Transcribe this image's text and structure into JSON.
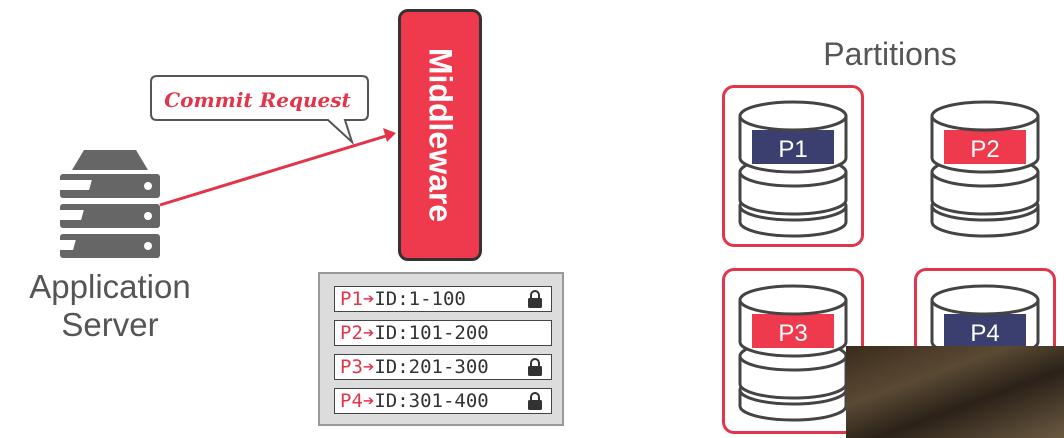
{
  "application_server": {
    "label_line1": "Application",
    "label_line2": "Server"
  },
  "commit_request": {
    "label": "Commit Request"
  },
  "middleware": {
    "label": "Middleware"
  },
  "lock_table": {
    "rows": [
      {
        "partition": "P1",
        "range": "ID:1-100",
        "locked": true
      },
      {
        "partition": "P2",
        "range": "ID:101-200",
        "locked": false
      },
      {
        "partition": "P3",
        "range": "ID:201-300",
        "locked": true
      },
      {
        "partition": "P4",
        "range": "ID:301-400",
        "locked": true
      }
    ]
  },
  "partitions": {
    "title": "Partitions",
    "items": [
      {
        "label": "P1",
        "band_color": "#3b3f70",
        "highlighted": true
      },
      {
        "label": "P2",
        "band_color": "#ee3a4c",
        "highlighted": false
      },
      {
        "label": "P3",
        "band_color": "#ee3a4c",
        "highlighted": true
      },
      {
        "label": "P4",
        "band_color": "#3b3f70",
        "highlighted": true
      }
    ]
  },
  "colors": {
    "accent": "#e2354a",
    "dark": "#3b3f70",
    "text": "#555555"
  }
}
